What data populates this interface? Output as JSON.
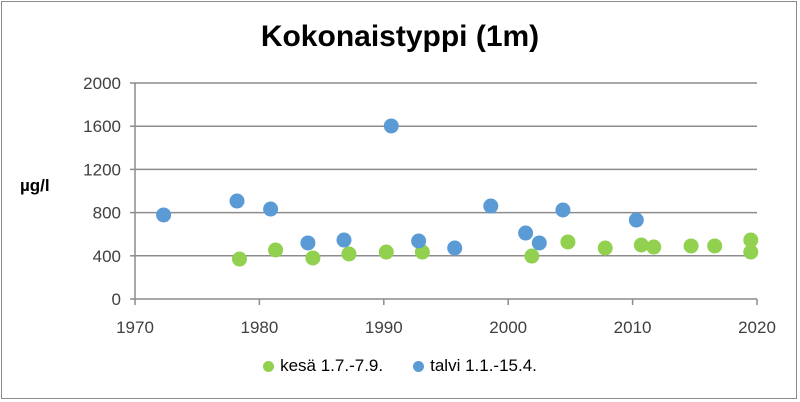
{
  "chart_data": {
    "type": "scatter",
    "title": "Kokonaistyppi (1m)",
    "xlabel": "",
    "ylabel": "µg/l",
    "xlim": [
      1970,
      2020
    ],
    "ylim": [
      0,
      2000
    ],
    "x_ticks": [
      1970,
      1980,
      1990,
      2000,
      2010,
      2020
    ],
    "y_ticks": [
      0,
      400,
      800,
      1200,
      1600,
      2000
    ],
    "grid": "horizontal",
    "legend_position": "bottom",
    "series": [
      {
        "name": "kesä 1.7.-7.9.",
        "color": "#92d050",
        "points": [
          [
            1978.4,
            370
          ],
          [
            1981.3,
            454
          ],
          [
            1984.3,
            380
          ],
          [
            1987.2,
            417
          ],
          [
            1990.2,
            435
          ],
          [
            1993.1,
            435
          ],
          [
            2001.9,
            398
          ],
          [
            2004.8,
            528
          ],
          [
            2007.8,
            472
          ],
          [
            2010.7,
            500
          ],
          [
            2011.7,
            481
          ],
          [
            2014.7,
            491
          ],
          [
            2016.6,
            491
          ],
          [
            2019.5,
            546
          ],
          [
            2019.5,
            435
          ]
        ]
      },
      {
        "name": "talvi 1.1.-15.4.",
        "color": "#5b9bd5",
        "points": [
          [
            1972.3,
            778
          ],
          [
            1978.2,
            907
          ],
          [
            1980.9,
            833
          ],
          [
            1983.9,
            519
          ],
          [
            1986.8,
            546
          ],
          [
            1990.6,
            1602
          ],
          [
            1992.8,
            537
          ],
          [
            1995.7,
            472
          ],
          [
            1998.6,
            861
          ],
          [
            2001.4,
            611
          ],
          [
            2002.5,
            519
          ],
          [
            2004.4,
            824
          ],
          [
            2010.3,
            731
          ]
        ]
      }
    ]
  }
}
